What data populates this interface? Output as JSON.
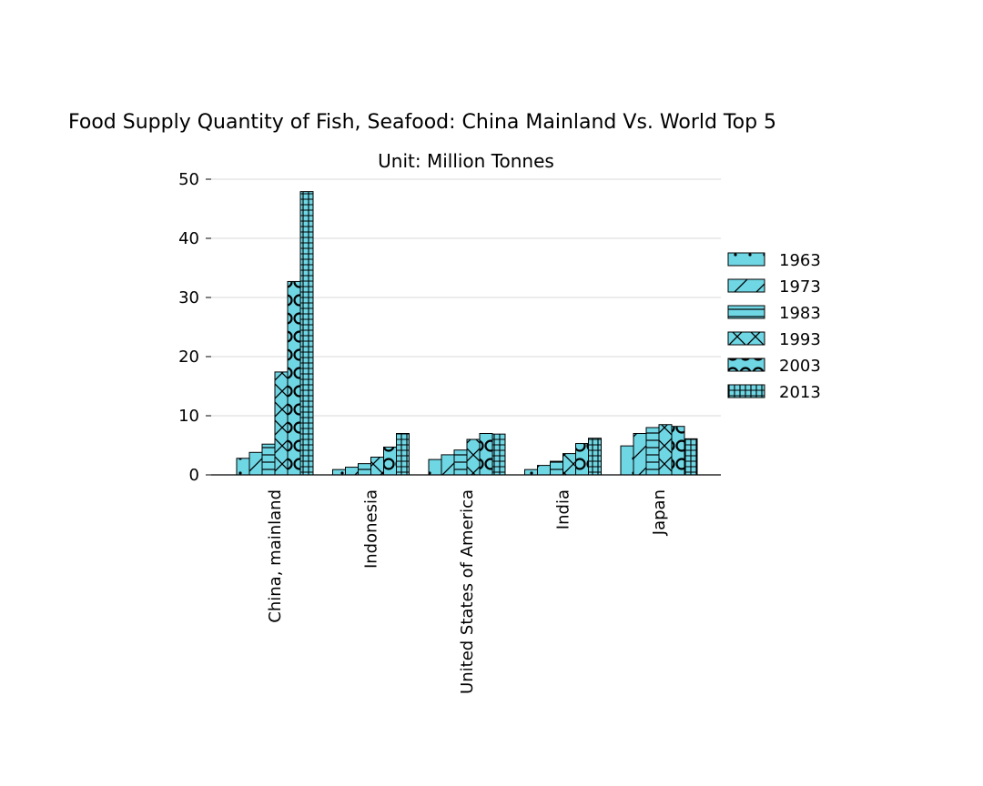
{
  "chart_data": {
    "type": "bar",
    "title": "Food Supply Quantity of Fish, Seafood: China Mainland Vs. World Top 5",
    "subtitle": "Unit: Million Tonnes",
    "xlabel": "",
    "ylabel": "",
    "ylim": [
      0,
      50
    ],
    "yticks": [
      0,
      10,
      20,
      30,
      40,
      50
    ],
    "grid": "horizontal",
    "legend_position": "right",
    "bar_color": "#6FD6E4",
    "edge_color": "#000000",
    "categories": [
      "China, mainland",
      "Indonesia",
      "United States of America",
      "India",
      "Japan"
    ],
    "series": [
      {
        "name": "1963",
        "pattern": "dots",
        "values": [
          2.8,
          0.9,
          2.6,
          0.9,
          4.9
        ]
      },
      {
        "name": "1973",
        "pattern": "diagonal",
        "values": [
          3.8,
          1.3,
          3.4,
          1.6,
          7.0
        ]
      },
      {
        "name": "1983",
        "pattern": "horizontal",
        "values": [
          5.2,
          1.9,
          4.2,
          2.3,
          8.0
        ]
      },
      {
        "name": "1993",
        "pattern": "cross",
        "values": [
          17.4,
          3.0,
          6.0,
          3.6,
          8.5
        ]
      },
      {
        "name": "2003",
        "pattern": "circles",
        "values": [
          32.7,
          4.7,
          7.0,
          5.3,
          8.2
        ]
      },
      {
        "name": "2013",
        "pattern": "grid",
        "values": [
          47.9,
          7.0,
          6.9,
          6.2,
          6.1
        ]
      }
    ]
  }
}
